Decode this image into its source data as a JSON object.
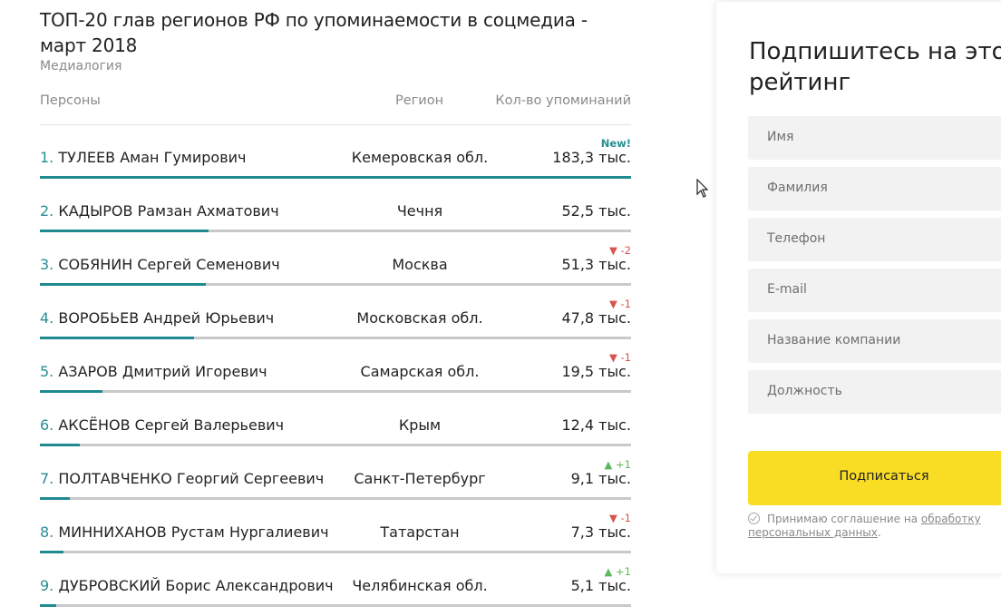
{
  "header": {
    "title": "ТОП-20 глав регионов РФ по упоминаемости в соцмедиа - март 2018",
    "subtitle": "Медиалогия"
  },
  "table": {
    "columns": {
      "person": "Персоны",
      "region": "Регион",
      "count": "Кол-во упоминаний"
    },
    "rows": [
      {
        "index": "1.",
        "name": "ТУЛЕЕВ Аман Гумирович",
        "region": "Кемеровская обл.",
        "count": "183,3 тыс.",
        "badge": "New!",
        "badge_type": "new",
        "level": 1.0
      },
      {
        "index": "2.",
        "name": "КАДЫРОВ Рамзан Ахматович",
        "region": "Чечня",
        "count": "52,5 тыс.",
        "badge": "",
        "badge_type": "",
        "level": 0.286
      },
      {
        "index": "3.",
        "name": "СОБЯНИН Сергей Семенович",
        "region": "Москва",
        "count": "51,3 тыс.",
        "badge": "▼ -2",
        "badge_type": "down",
        "level": 0.28
      },
      {
        "index": "4.",
        "name": "ВОРОБЬЕВ Андрей Юрьевич",
        "region": "Московская обл.",
        "count": "47,8 тыс.",
        "badge": "▼ -1",
        "badge_type": "down",
        "level": 0.261
      },
      {
        "index": "5.",
        "name": "АЗАРОВ Дмитрий Игоревич",
        "region": "Самарская обл.",
        "count": "19,5 тыс.",
        "badge": "▼ -1",
        "badge_type": "down",
        "level": 0.106
      },
      {
        "index": "6.",
        "name": "АКСЁНОВ Сергей Валерьевич",
        "region": "Крым",
        "count": "12,4 тыс.",
        "badge": "",
        "badge_type": "",
        "level": 0.068
      },
      {
        "index": "7.",
        "name": "ПОЛТАВЧЕНКО Георгий Сергеевич",
        "region": "Санкт-Петербург",
        "count": "9,1 тыс.",
        "badge": "▲ +1",
        "badge_type": "up",
        "level": 0.05
      },
      {
        "index": "8.",
        "name": "МИННИХАНОВ Рустам Нургалиевич",
        "region": "Татарстан",
        "count": "7,3 тыс.",
        "badge": "▼ -1",
        "badge_type": "down",
        "level": 0.04
      },
      {
        "index": "9.",
        "name": "ДУБРОВСКИЙ Борис Александрович",
        "region": "Челябинская обл.",
        "count": "5,1 тыс.",
        "badge": "▲ +1",
        "badge_type": "up",
        "level": 0.028
      }
    ]
  },
  "form": {
    "title_line1": "Подпишитесь на этот",
    "title_line2": "рейтинг",
    "fields": [
      "Имя",
      "Фамилия",
      "Телефон",
      "E-mail",
      "Название компании",
      "Должность"
    ],
    "submit_label": "Подписаться",
    "consent_text": "Принимаю соглашение на",
    "consent_link": "обработку персональных данных",
    "consent_end": "."
  },
  "colors": {
    "accent": "#1f8a8f",
    "button": "#f9dd25",
    "down": "#d9534f",
    "up": "#5cb85c"
  }
}
